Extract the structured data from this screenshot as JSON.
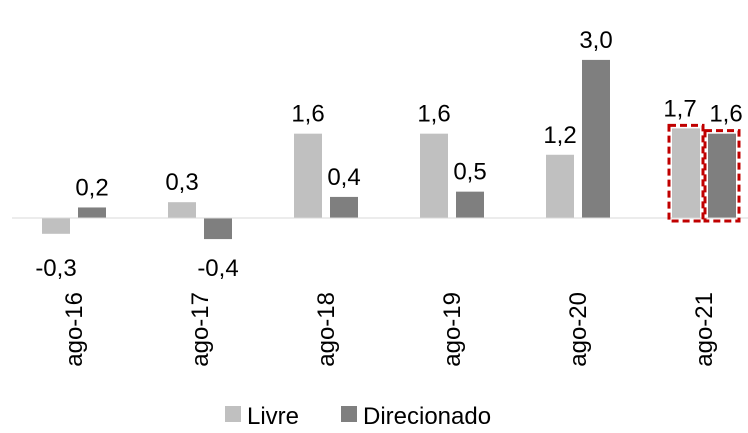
{
  "chart_data": {
    "type": "bar",
    "categories": [
      "ago-16",
      "ago-17",
      "ago-18",
      "ago-19",
      "ago-20",
      "ago-21"
    ],
    "series": [
      {
        "name": "Livre",
        "values": [
          -0.3,
          0.3,
          1.6,
          1.6,
          1.2,
          1.7
        ],
        "labels": [
          "-0,3",
          "0,3",
          "1,6",
          "1,6",
          "1,2",
          "1,7"
        ],
        "color": "#c0c0c0"
      },
      {
        "name": "Direcionado",
        "values": [
          0.2,
          -0.4,
          0.4,
          0.5,
          3.0,
          1.6
        ],
        "labels": [
          "0,2",
          "-0,4",
          "0,4",
          "0,5",
          "3,0",
          "1,6"
        ],
        "color": "#7f7f7f"
      }
    ],
    "highlight_category": "ago-21",
    "highlight_color": "#c00000",
    "ylim": [
      -0.4,
      3.0
    ],
    "grid": false,
    "legend_position": "bottom",
    "title": "",
    "xlabel": "",
    "ylabel": ""
  }
}
